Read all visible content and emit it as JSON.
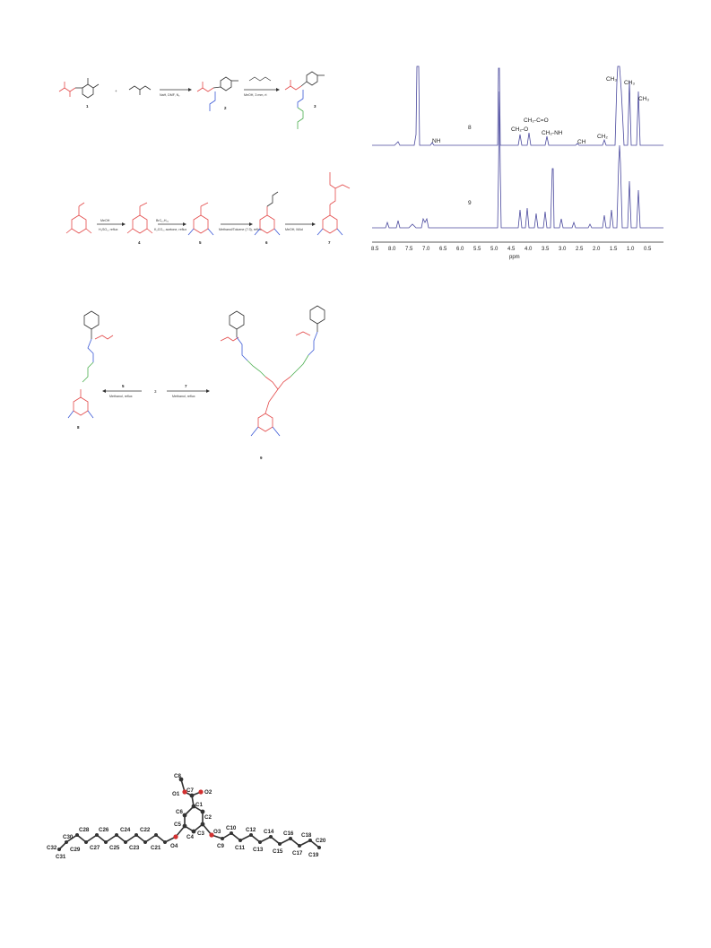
{
  "scheme1": {
    "compound_labels": [
      "1",
      "2",
      "3"
    ],
    "reagents": [
      "NaH, DMF, N₂",
      "MeOH, 3 mm, rt"
    ]
  },
  "scheme2": {
    "compound_labels": [
      "4",
      "5",
      "6",
      "7"
    ],
    "reagents": [
      "MeOH",
      "H₂SO₄, reflux",
      "BrC₁₀H₂₁",
      "K₂CO₃, acetone, reflux",
      "Methanol/Toluene (7:3), reflux",
      "MeOH, MAd"
    ]
  },
  "scheme3": {
    "compound_labels": [
      "8",
      "9"
    ],
    "center_label": "3",
    "left_arrow_label": "5",
    "left_arrow_reagent": "Methanol, reflux",
    "right_arrow_label": "7",
    "right_arrow_reagent": "Methanol, reflux"
  },
  "nmr": {
    "trace_labels": [
      "8",
      "9"
    ],
    "peak_labels": [
      "NH",
      "CH₂-O",
      "CH₂-C=O",
      "CH₂-NH",
      "CH",
      "CH₂",
      "CH₃",
      "CH₃",
      "CH₃"
    ],
    "x_ticks": [
      "8.5",
      "8.0",
      "7.5",
      "7.0",
      "6.5",
      "6.0",
      "5.5",
      "5.0",
      "4.5",
      "4.0",
      "3.5",
      "3.0",
      "2.5",
      "2.0",
      "1.5",
      "1.0",
      "0.5"
    ],
    "x_label": "ppm",
    "colors": {
      "trace": "#4b4a9e",
      "fill": "#5a57b8"
    }
  },
  "crystal": {
    "atoms_top": [
      "C8",
      "O1",
      "C7",
      "O2",
      "C6",
      "C1",
      "C2",
      "C5",
      "C3",
      "C4",
      "O4",
      "O3"
    ],
    "chain_left": [
      "C32",
      "C31",
      "C30",
      "C29",
      "C28",
      "C27",
      "C26",
      "C25",
      "C24",
      "C23",
      "C22",
      "C21"
    ],
    "chain_right": [
      "C9",
      "C10",
      "C11",
      "C12",
      "C13",
      "C14",
      "C15",
      "C16",
      "C17",
      "C18",
      "C19",
      "C20"
    ]
  }
}
